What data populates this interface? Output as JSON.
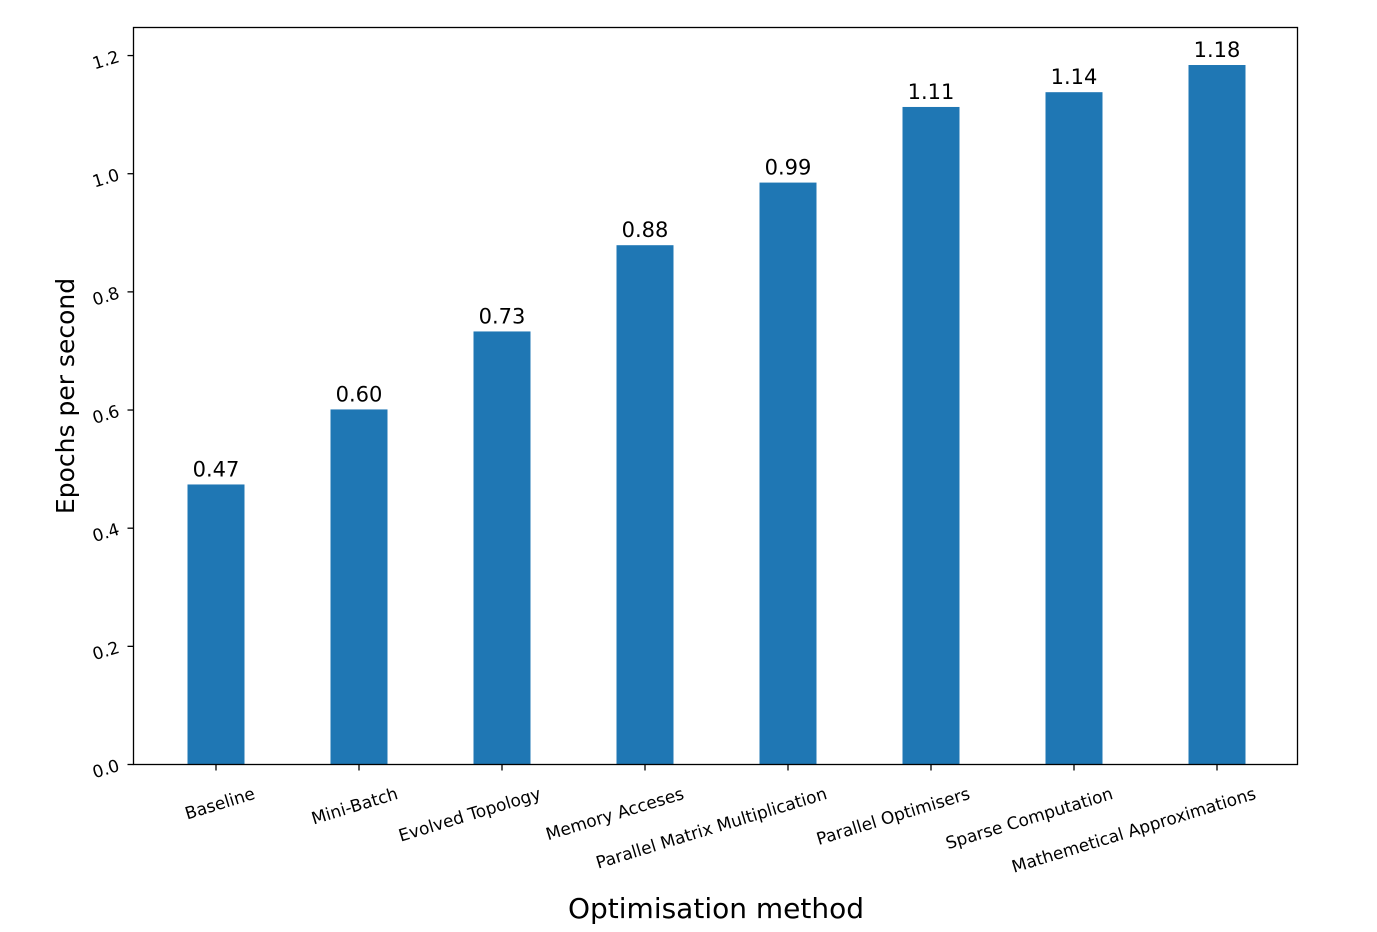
{
  "chart_data": {
    "type": "bar",
    "categories": [
      "Baseline",
      "Mini-Batch",
      "Evolved Topology",
      "Memory Acceses",
      "Parallel Matrix Multiplication",
      "Parallel Optimisers",
      "Sparse Computation",
      "Mathemetical Approximations"
    ],
    "values": [
      0.474,
      0.601,
      0.733,
      0.879,
      0.985,
      1.113,
      1.138,
      1.184
    ],
    "value_labels": [
      "0.47",
      "0.60",
      "0.73",
      "0.88",
      "0.99",
      "1.11",
      "1.14",
      "1.18"
    ],
    "xlabel": "Optimisation method",
    "ylabel": "Epochs per second",
    "ylim": [
      0,
      1.2475
    ],
    "yticks": [
      0.0,
      0.2,
      0.4,
      0.6,
      0.8,
      1.0,
      1.2
    ],
    "ytick_labels": [
      "0.0",
      "0.2",
      "0.4",
      "0.6",
      "0.8",
      "1.0",
      "1.2"
    ],
    "grid": false,
    "bar_color": "#1f77b4"
  }
}
